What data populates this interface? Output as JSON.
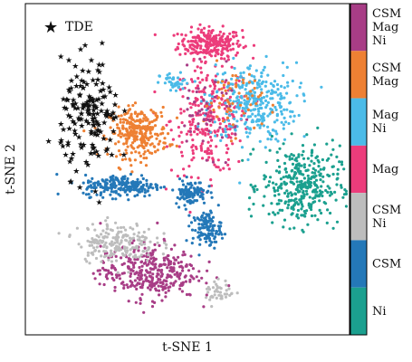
{
  "chart_data": {
    "type": "scatter",
    "title": "",
    "xlabel": "t-SNE 1",
    "ylabel": "t-SNE 2",
    "xlim": [
      0,
      100
    ],
    "ylim": [
      0,
      100
    ],
    "legend": {
      "marker": "star",
      "label": "TDE",
      "color": "#111111",
      "placement": "top-left"
    },
    "colorbar_position": "right",
    "categories": [
      {
        "label": "CSM\nMag\nNi",
        "color": "#a83d86"
      },
      {
        "label": "CSM\nMag",
        "color": "#ee8033"
      },
      {
        "label": "Mag\nNi",
        "color": "#4bbbe8"
      },
      {
        "label": "Mag",
        "color": "#ec3c7b"
      },
      {
        "label": "CSM\nNi",
        "color": "#bdbdbd"
      },
      {
        "label": "CSM",
        "color": "#2478b8"
      },
      {
        "label": "Ni",
        "color": "#1ba08f"
      }
    ],
    "clusters": [
      {
        "category": "Mag",
        "cx": 57,
        "cy": 88,
        "sx": 6.5,
        "sy": 3,
        "n": 240
      },
      {
        "category": "Mag",
        "cx": 57,
        "cy": 65,
        "sx": 8,
        "sy": 11,
        "n": 280
      },
      {
        "category": "Mag\nNi",
        "cx": 70,
        "cy": 70,
        "sx": 9,
        "sy": 8,
        "n": 320
      },
      {
        "category": "Mag\nNi",
        "cx": 46,
        "cy": 76,
        "sx": 3,
        "sy": 2,
        "n": 40
      },
      {
        "category": "CSM\nMag",
        "cx": 35,
        "cy": 61,
        "sx": 6,
        "sy": 5,
        "n": 280
      },
      {
        "category": "CSM\nMag",
        "cx": 64,
        "cy": 71,
        "sx": 6,
        "sy": 7,
        "n": 60
      },
      {
        "category": "CSM\nMag\nNi",
        "cx": 56,
        "cy": 67,
        "sx": 7,
        "sy": 8,
        "n": 50
      },
      {
        "category": "Ni",
        "cx": 85,
        "cy": 45,
        "sx": 8,
        "sy": 8,
        "n": 360
      },
      {
        "category": "CSM",
        "cx": 30,
        "cy": 45,
        "sx": 8,
        "sy": 2.2,
        "n": 220
      },
      {
        "category": "CSM",
        "cx": 51,
        "cy": 43,
        "sx": 3.2,
        "sy": 2.5,
        "n": 110
      },
      {
        "category": "CSM",
        "cx": 56,
        "cy": 32,
        "sx": 3,
        "sy": 3.5,
        "n": 120
      },
      {
        "category": "CSM\nMag\nNi",
        "cx": 38,
        "cy": 19,
        "sx": 10,
        "sy": 5.5,
        "n": 360
      },
      {
        "category": "CSM\nNi",
        "cx": 28,
        "cy": 28,
        "sx": 8,
        "sy": 4,
        "n": 200
      },
      {
        "category": "CSM\nNi",
        "cx": 60,
        "cy": 13,
        "sx": 3,
        "sy": 2.5,
        "n": 40
      },
      {
        "category": "TDE",
        "cx": 20,
        "cy": 66,
        "sx": 6,
        "sy": 11,
        "n": 160
      }
    ]
  }
}
